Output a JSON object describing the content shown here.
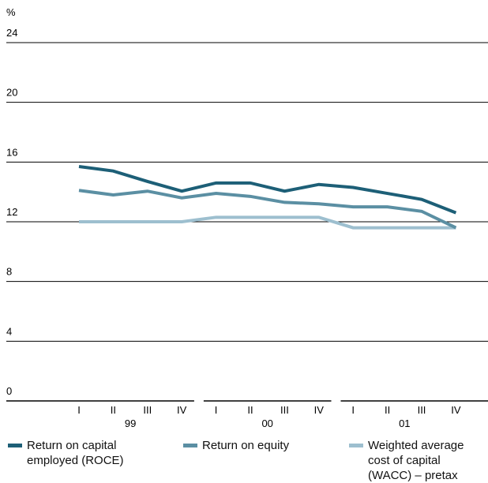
{
  "chart_data": {
    "type": "line",
    "y_unit": "%",
    "categories": [
      "I",
      "II",
      "III",
      "IV",
      "I",
      "II",
      "III",
      "IV",
      "I",
      "II",
      "III",
      "IV"
    ],
    "year_labels": [
      "99",
      "00",
      "01"
    ],
    "series": [
      {
        "name": "Return on capital employed (ROCE)",
        "color": "#1d5f77",
        "values": [
          15.7,
          15.4,
          14.7,
          14.05,
          14.6,
          14.6,
          14.05,
          14.5,
          14.3,
          13.9,
          13.5,
          12.6
        ]
      },
      {
        "name": "Return on equity",
        "color": "#5b8fa3",
        "values": [
          14.1,
          13.8,
          14.05,
          13.6,
          13.9,
          13.7,
          13.3,
          13.2,
          13.0,
          13.0,
          12.7,
          11.6
        ]
      },
      {
        "name": "Weighted average cost of capital (WACC) – pretax",
        "color": "#9dbfcf",
        "values": [
          12.0,
          12.0,
          12.0,
          12.0,
          12.3,
          12.3,
          12.3,
          12.3,
          11.6,
          11.6,
          11.6,
          11.6
        ]
      }
    ],
    "ylim": [
      0,
      24
    ],
    "yticks": [
      0,
      4,
      8,
      12,
      16,
      20,
      24
    ],
    "grid": true
  }
}
